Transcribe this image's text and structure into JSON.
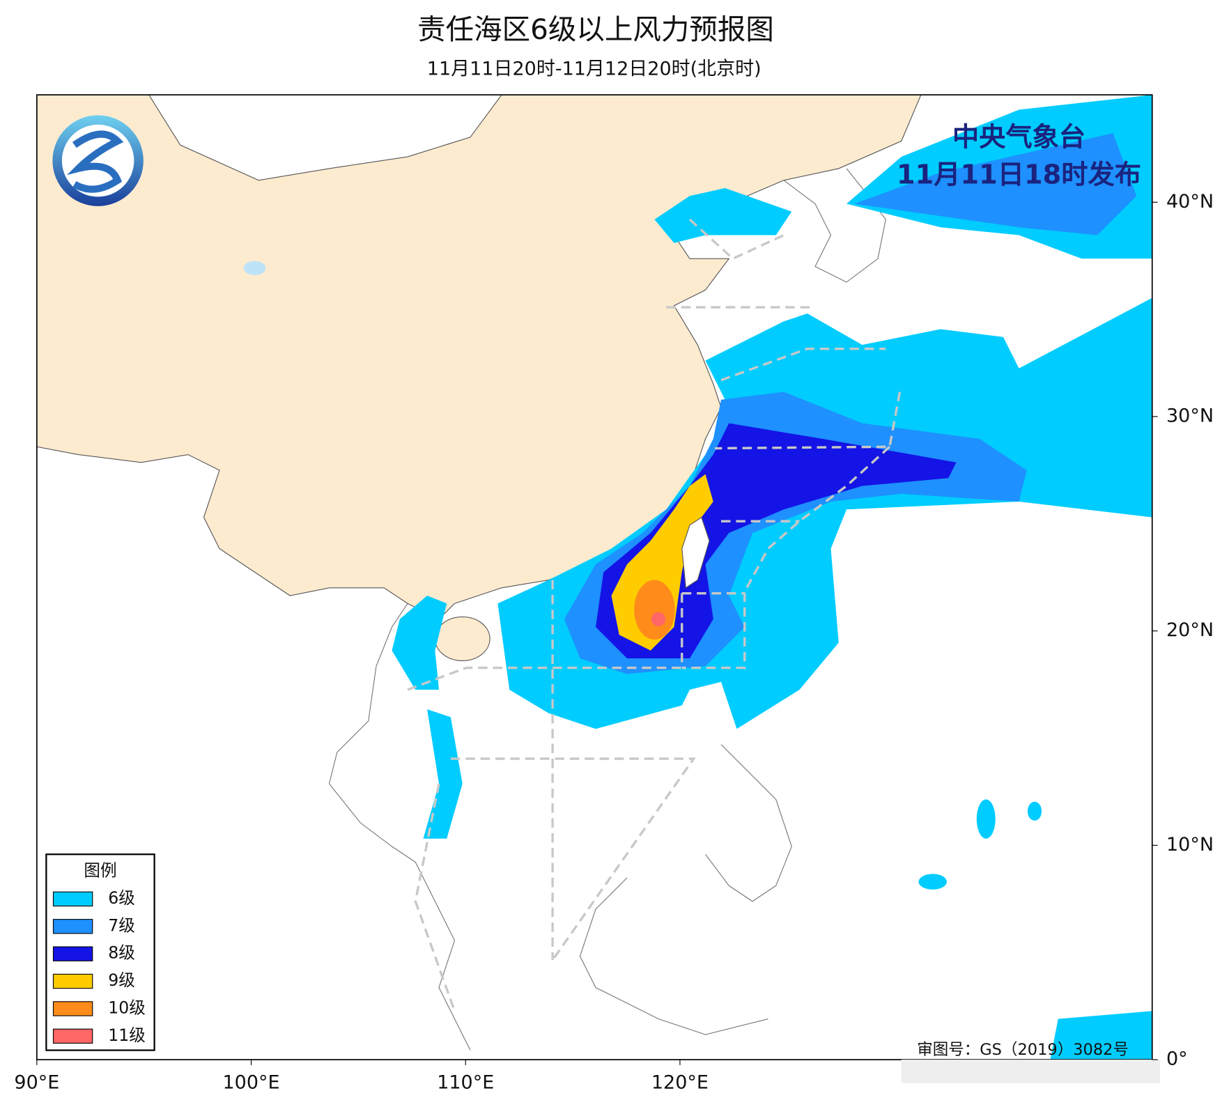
{
  "header": {
    "title": "责任海区6级以上风力预报图",
    "subtitle": "11月11日20时-11月12日20时(北京时)"
  },
  "issuer": {
    "name": "中央气象台",
    "time": "11月11日18时发布"
  },
  "legend": {
    "title": "图例",
    "items": [
      {
        "label": "6级",
        "color": "#00ccff"
      },
      {
        "label": "7级",
        "color": "#1e90ff"
      },
      {
        "label": "8级",
        "color": "#1414e6"
      },
      {
        "label": "9级",
        "color": "#ffcc00"
      },
      {
        "label": "10级",
        "color": "#ff8c1a"
      },
      {
        "label": "11级",
        "color": "#ff6666"
      }
    ]
  },
  "axes": {
    "lon_ticks": [
      {
        "value": 90,
        "label": "90°E"
      },
      {
        "value": 100,
        "label": "100°E"
      },
      {
        "value": 110,
        "label": "110°E"
      },
      {
        "value": 120,
        "label": "120°E"
      }
    ],
    "lat_ticks": [
      {
        "value": 0,
        "label": "0°"
      },
      {
        "value": 10,
        "label": "10°N"
      },
      {
        "value": 20,
        "label": "20°N"
      },
      {
        "value": 30,
        "label": "30°N"
      },
      {
        "value": 40,
        "label": "40°N"
      }
    ]
  },
  "footer": {
    "approval": "审图号：GS（2019）3082号"
  }
}
